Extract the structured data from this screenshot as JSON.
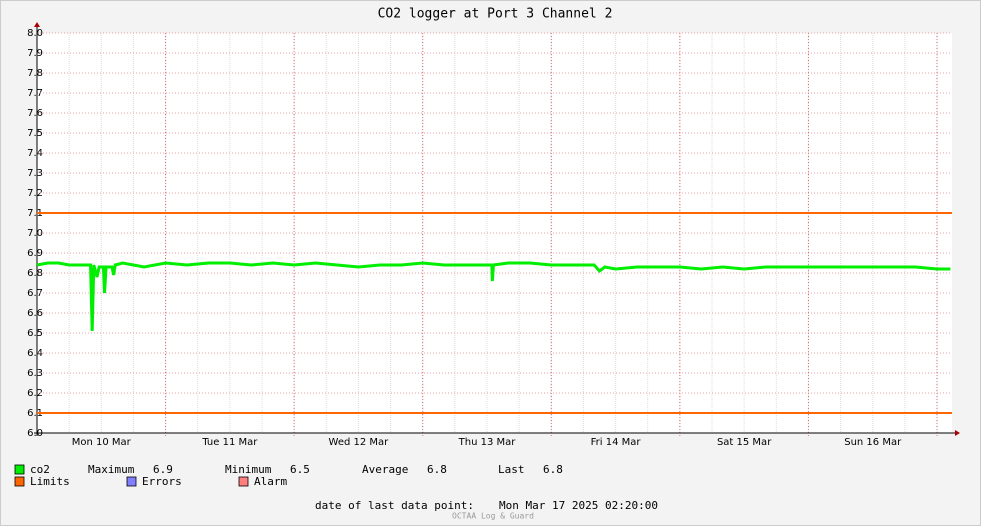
{
  "chart_data": {
    "type": "line",
    "title": "CO2 logger at Port 3 Channel 2",
    "x": [
      0,
      2,
      4,
      6,
      8,
      10,
      10.3,
      10.6,
      11.2,
      11.6,
      12.4,
      12.6,
      12.9,
      14,
      14.3,
      14.6,
      16,
      18,
      20,
      24,
      28,
      32,
      36,
      40,
      44,
      48,
      52,
      56,
      60,
      64,
      68,
      72,
      76,
      80,
      84,
      84.9,
      85,
      85.2,
      88,
      92,
      96,
      100,
      104,
      105,
      106,
      108,
      112,
      116,
      120,
      124,
      128,
      132,
      136,
      140,
      144,
      148,
      152,
      156,
      160,
      164,
      168,
      170.5
    ],
    "xlim": [
      0,
      170.8
    ],
    "xticks": [
      {
        "value": 12,
        "label": "Mon 10 Mar"
      },
      {
        "value": 36,
        "label": "Tue 11 Mar"
      },
      {
        "value": 60,
        "label": "Wed 12 Mar"
      },
      {
        "value": 84,
        "label": "Thu 13 Mar"
      },
      {
        "value": 108,
        "label": "Fri 14 Mar"
      },
      {
        "value": 132,
        "label": "Sat 15 Mar"
      },
      {
        "value": 156,
        "label": "Sun 16 Mar"
      }
    ],
    "day_lines": [
      24,
      48,
      72,
      96,
      120,
      144,
      168
    ],
    "ylim": [
      6,
      8
    ],
    "yticks": [
      {
        "value": 6,
        "label": "6.0"
      },
      6.1,
      6.2,
      6.3,
      6.4,
      6.5,
      6.6,
      6.7,
      6.8,
      6.9,
      {
        "value": 7,
        "label": "7.0"
      },
      7.1,
      7.2,
      7.3,
      7.4,
      7.5,
      7.6,
      7.7,
      7.8,
      7.9,
      {
        "value": 8,
        "label": "8.0"
      }
    ],
    "grid": true,
    "series": [
      {
        "name": "co2",
        "color": "#00ee00",
        "values": [
          6.84,
          6.85,
          6.85,
          6.84,
          6.84,
          6.84,
          6.51,
          6.84,
          6.78,
          6.83,
          6.83,
          6.7,
          6.83,
          6.83,
          6.79,
          6.84,
          6.85,
          6.84,
          6.83,
          6.85,
          6.84,
          6.85,
          6.85,
          6.84,
          6.85,
          6.84,
          6.85,
          6.84,
          6.83,
          6.84,
          6.84,
          6.85,
          6.84,
          6.84,
          6.84,
          6.84,
          6.76,
          6.84,
          6.85,
          6.85,
          6.84,
          6.84,
          6.84,
          6.81,
          6.83,
          6.82,
          6.83,
          6.83,
          6.83,
          6.82,
          6.83,
          6.82,
          6.83,
          6.83,
          6.83,
          6.83,
          6.83,
          6.83,
          6.83,
          6.83,
          6.82,
          6.82
        ]
      }
    ],
    "limits": {
      "name": "Limits",
      "color": "#ff6600",
      "values": [
        7.1,
        6.1
      ]
    },
    "legend_extra": [
      {
        "name": "Errors",
        "color": "#7f7fff"
      },
      {
        "name": "Alarm",
        "color": "#ff7f7f"
      }
    ],
    "stats": [
      {
        "label": "Maximum",
        "value": 6.9
      },
      {
        "label": "Minimum",
        "value": 6.5
      },
      {
        "label": "Average",
        "value": 6.8
      },
      {
        "label": "Last",
        "value": 6.8
      }
    ],
    "footer_label": "date of last data point:",
    "footer_value": "Mon Mar 17 2025 02:20:00",
    "watermark": "OCTAA Log & Guard"
  }
}
